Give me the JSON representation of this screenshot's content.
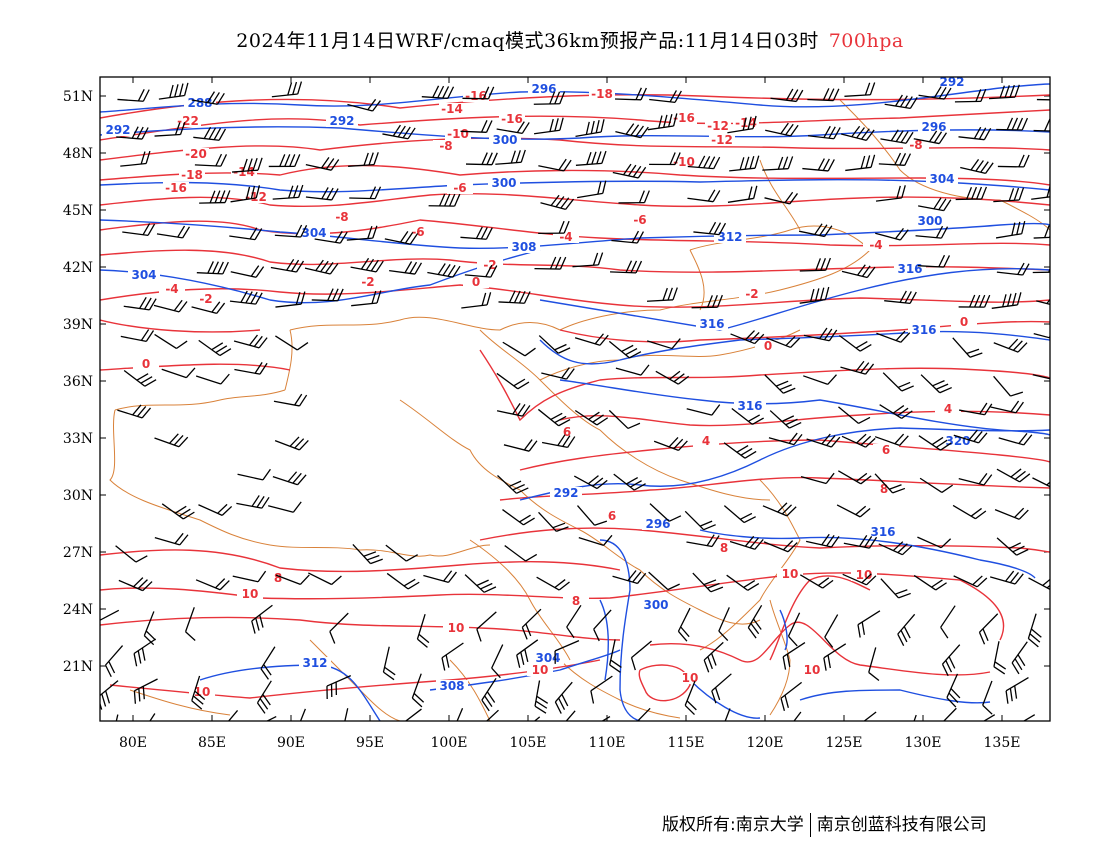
{
  "title": {
    "text": "2024年11月14日WRF/cmaq模式36km预报产品:11月14日03时",
    "level": "700hpa"
  },
  "colors": {
    "temperature": "#e8333a",
    "height": "#1f4fe0",
    "border": "#d9823a",
    "wind": "#000000"
  },
  "axes": {
    "lat_labels": [
      "51N",
      "48N",
      "45N",
      "42N",
      "39N",
      "36N",
      "33N",
      "30N",
      "27N",
      "24N",
      "21N"
    ],
    "lon_labels": [
      "80E",
      "85E",
      "90E",
      "95E",
      "100E",
      "105E",
      "110E",
      "115E",
      "120E",
      "125E",
      "130E",
      "135E"
    ]
  },
  "temperature_labels": [
    "-22",
    "-20",
    "-18",
    "-16",
    "-16",
    "-14",
    "-12",
    "-8",
    "-6",
    "-4",
    "-2",
    "-2",
    "0",
    "0",
    "-16",
    "-14",
    "-12",
    "-10",
    "-8",
    "-6",
    "-4",
    "-2",
    "0",
    "4",
    "6",
    "6",
    "8",
    "8",
    "10",
    "10",
    "10",
    "10",
    "10",
    "-18",
    "-16",
    "-14",
    "-12",
    "-10",
    "-8",
    "-6",
    "-4",
    "-2",
    "0",
    "4",
    "6",
    "8",
    "8",
    "10",
    "10",
    "10"
  ],
  "height_labels": [
    "288",
    "292",
    "292",
    "296",
    "300",
    "300",
    "304",
    "304",
    "308",
    "312",
    "316",
    "316",
    "316",
    "316",
    "320",
    "292",
    "296",
    "300",
    "304",
    "308",
    "312",
    "316",
    "300",
    "304",
    "296",
    "292"
  ],
  "footer": {
    "copyright": "版权所有:南京大学",
    "company": "南京创蓝科技有限公司"
  }
}
